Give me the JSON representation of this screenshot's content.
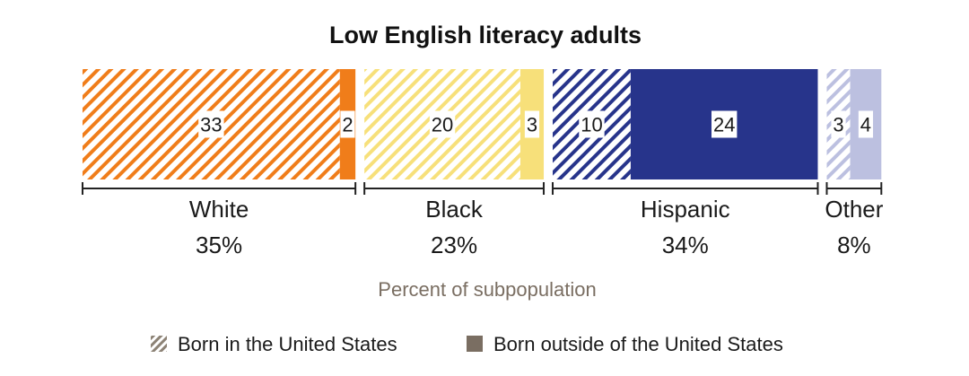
{
  "chart_data": {
    "type": "bar",
    "orientation": "horizontal-stacked",
    "title": "Low English literacy adults",
    "xlabel": "Percent of subpopulation",
    "groups": [
      {
        "name": "White",
        "total_label": "35%",
        "color": "#f07d1a",
        "light": "#ffffff",
        "segments": [
          {
            "series": "us",
            "value": 33
          },
          {
            "series": "foreign",
            "value": 2
          }
        ]
      },
      {
        "name": "Black",
        "total_label": "23%",
        "color": "#f7e07a",
        "light": "#ffffff",
        "segments": [
          {
            "series": "us",
            "value": 20
          },
          {
            "series": "foreign",
            "value": 3
          }
        ]
      },
      {
        "name": "Hispanic",
        "total_label": "34%",
        "color": "#27348b",
        "light": "#ffffff",
        "segments": [
          {
            "series": "us",
            "value": 10
          },
          {
            "series": "foreign",
            "value": 24
          }
        ]
      },
      {
        "name": "Other",
        "total_label": "8%",
        "color": "#bcc0e0",
        "light": "#ffffff",
        "segments": [
          {
            "series": "us",
            "value": 3
          },
          {
            "series": "foreign",
            "value": 4
          }
        ]
      }
    ],
    "series": [
      {
        "key": "us",
        "name": "Born in the United States",
        "pattern": "hatched"
      },
      {
        "key": "foreign",
        "name": "Born outside of the United States",
        "pattern": "solid"
      }
    ],
    "legend": {
      "placement": "bottom",
      "hatch_color": "#8c8275",
      "solid_color": "#7a6e62"
    },
    "total": 100
  }
}
